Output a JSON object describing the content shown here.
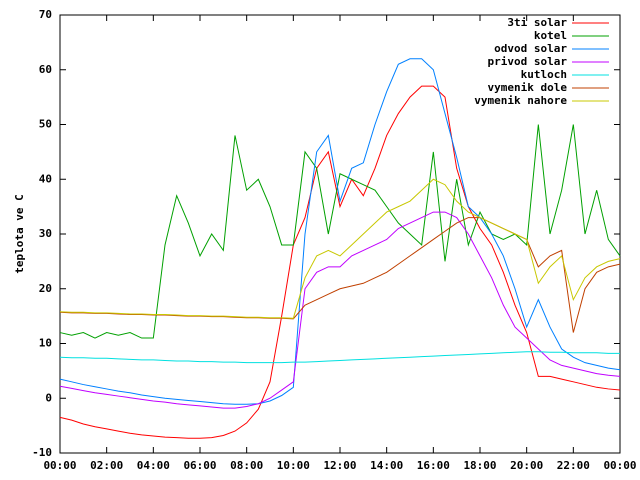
{
  "chart_data": {
    "type": "line",
    "ylabel": "teplota ve C",
    "x": [
      0,
      0.5,
      1,
      1.5,
      2,
      2.5,
      3,
      3.5,
      4,
      4.5,
      5,
      5.5,
      6,
      6.5,
      7,
      7.5,
      8,
      8.5,
      9,
      9.5,
      10,
      10.5,
      11,
      11.5,
      12,
      12.5,
      13,
      13.5,
      14,
      14.5,
      15,
      15.5,
      16,
      16.5,
      17,
      17.5,
      18,
      18.5,
      19,
      19.5,
      20,
      20.5,
      21,
      21.5,
      22,
      22.5,
      23,
      23.5,
      24
    ],
    "xlim": [
      0,
      24
    ],
    "xticks": [
      {
        "value": 0,
        "label": "00:00"
      },
      {
        "value": 2,
        "label": "02:00"
      },
      {
        "value": 4,
        "label": "04:00"
      },
      {
        "value": 6,
        "label": "06:00"
      },
      {
        "value": 8,
        "label": "08:00"
      },
      {
        "value": 10,
        "label": "10:00"
      },
      {
        "value": 12,
        "label": "12:00"
      },
      {
        "value": 14,
        "label": "14:00"
      },
      {
        "value": 16,
        "label": "16:00"
      },
      {
        "value": 18,
        "label": "18:00"
      },
      {
        "value": 20,
        "label": "20:00"
      },
      {
        "value": 22,
        "label": "22:00"
      },
      {
        "value": 24,
        "label": "00:00"
      }
    ],
    "ylim": [
      -10,
      70
    ],
    "yticks": [
      -10,
      0,
      10,
      20,
      30,
      40,
      50,
      60,
      70
    ],
    "grid": false,
    "legend": "top-right",
    "series": [
      {
        "name": "3ti solar",
        "color": "#ff0000",
        "values": [
          -3.5,
          -4,
          -4.7,
          -5.2,
          -5.6,
          -6,
          -6.4,
          -6.7,
          -6.9,
          -7.1,
          -7.2,
          -7.3,
          -7.3,
          -7.2,
          -6.8,
          -6,
          -4.5,
          -2,
          3,
          15,
          28,
          33,
          42,
          45,
          35,
          40,
          37,
          42,
          48,
          52,
          55,
          57,
          57,
          55,
          42,
          35,
          31,
          28,
          23,
          17,
          12,
          4,
          4,
          3.5,
          3,
          2.5,
          2,
          1.7,
          1.5
        ]
      },
      {
        "name": "kotel",
        "color": "#00a000",
        "values": [
          12,
          11.5,
          12,
          11,
          12,
          11.5,
          12,
          11,
          11,
          28,
          37,
          32,
          26,
          30,
          27,
          48,
          38,
          40,
          35,
          28,
          28,
          45,
          42,
          30,
          41,
          40,
          39,
          38,
          35,
          32,
          30,
          28,
          45,
          25,
          40,
          28,
          34,
          30,
          29,
          30,
          28,
          50,
          30,
          38,
          50,
          30,
          38,
          29,
          26
        ]
      },
      {
        "name": "odvod solar",
        "color": "#0080ff",
        "values": [
          3.5,
          3.0,
          2.5,
          2.1,
          1.7,
          1.3,
          1.0,
          0.6,
          0.3,
          0,
          -0.2,
          -0.4,
          -0.6,
          -0.8,
          -1,
          -1.1,
          -1.1,
          -1,
          -0.5,
          0.5,
          2,
          30,
          45,
          48,
          36,
          42,
          43,
          50,
          56,
          61,
          62,
          62,
          60,
          52,
          44,
          35,
          33,
          30,
          26,
          20,
          13,
          18,
          13,
          9,
          7.5,
          6.5,
          6,
          5.5,
          5.2
        ]
      },
      {
        "name": "privod solar",
        "color": "#c000ff",
        "values": [
          2.2,
          1.8,
          1.4,
          1,
          0.7,
          0.4,
          0.1,
          -0.2,
          -0.5,
          -0.7,
          -1,
          -1.2,
          -1.4,
          -1.6,
          -1.8,
          -1.8,
          -1.5,
          -1,
          0,
          1.5,
          3,
          20,
          23,
          24,
          24,
          26,
          27,
          28,
          29,
          31,
          32,
          33,
          34,
          34,
          33,
          30,
          26,
          22,
          17,
          13,
          11,
          9,
          7,
          6,
          5.5,
          5,
          4.5,
          4.2,
          4
        ]
      },
      {
        "name": "kutloch",
        "color": "#00e0e0",
        "values": [
          7.5,
          7.4,
          7.4,
          7.3,
          7.3,
          7.2,
          7.1,
          7.0,
          7.0,
          6.9,
          6.8,
          6.8,
          6.7,
          6.7,
          6.6,
          6.6,
          6.5,
          6.5,
          6.5,
          6.5,
          6.6,
          6.6,
          6.7,
          6.8,
          6.9,
          7.0,
          7.1,
          7.2,
          7.3,
          7.4,
          7.5,
          7.6,
          7.7,
          7.8,
          7.9,
          8.0,
          8.1,
          8.2,
          8.3,
          8.4,
          8.5,
          8.5,
          8.4,
          8.4,
          8.3,
          8.3,
          8.3,
          8.2,
          8.2
        ]
      },
      {
        "name": "vymenik dole",
        "color": "#c04000",
        "values": [
          15.7,
          15.6,
          15.6,
          15.5,
          15.5,
          15.4,
          15.3,
          15.3,
          15.2,
          15.2,
          15.1,
          15.0,
          15.0,
          14.9,
          14.9,
          14.8,
          14.7,
          14.7,
          14.6,
          14.6,
          14.5,
          17,
          18,
          19,
          20,
          20.5,
          21,
          22,
          23,
          24.5,
          26,
          27.5,
          29,
          30.5,
          32,
          33,
          33,
          32,
          31,
          30,
          29,
          24,
          26,
          27,
          12,
          20,
          23,
          24,
          24.5
        ]
      },
      {
        "name": "vymenik nahore",
        "color": "#c8c800",
        "values": [
          15.8,
          15.7,
          15.7,
          15.6,
          15.6,
          15.5,
          15.4,
          15.4,
          15.3,
          15.3,
          15.2,
          15.1,
          15.1,
          15.0,
          15.0,
          14.9,
          14.8,
          14.8,
          14.7,
          14.7,
          14.6,
          22,
          26,
          27,
          26,
          28,
          30,
          32,
          34,
          35,
          36,
          38,
          40,
          39,
          36,
          34,
          33,
          32,
          31,
          30,
          29,
          21,
          24,
          26,
          18,
          22,
          24,
          25,
          25.5
        ]
      }
    ]
  }
}
